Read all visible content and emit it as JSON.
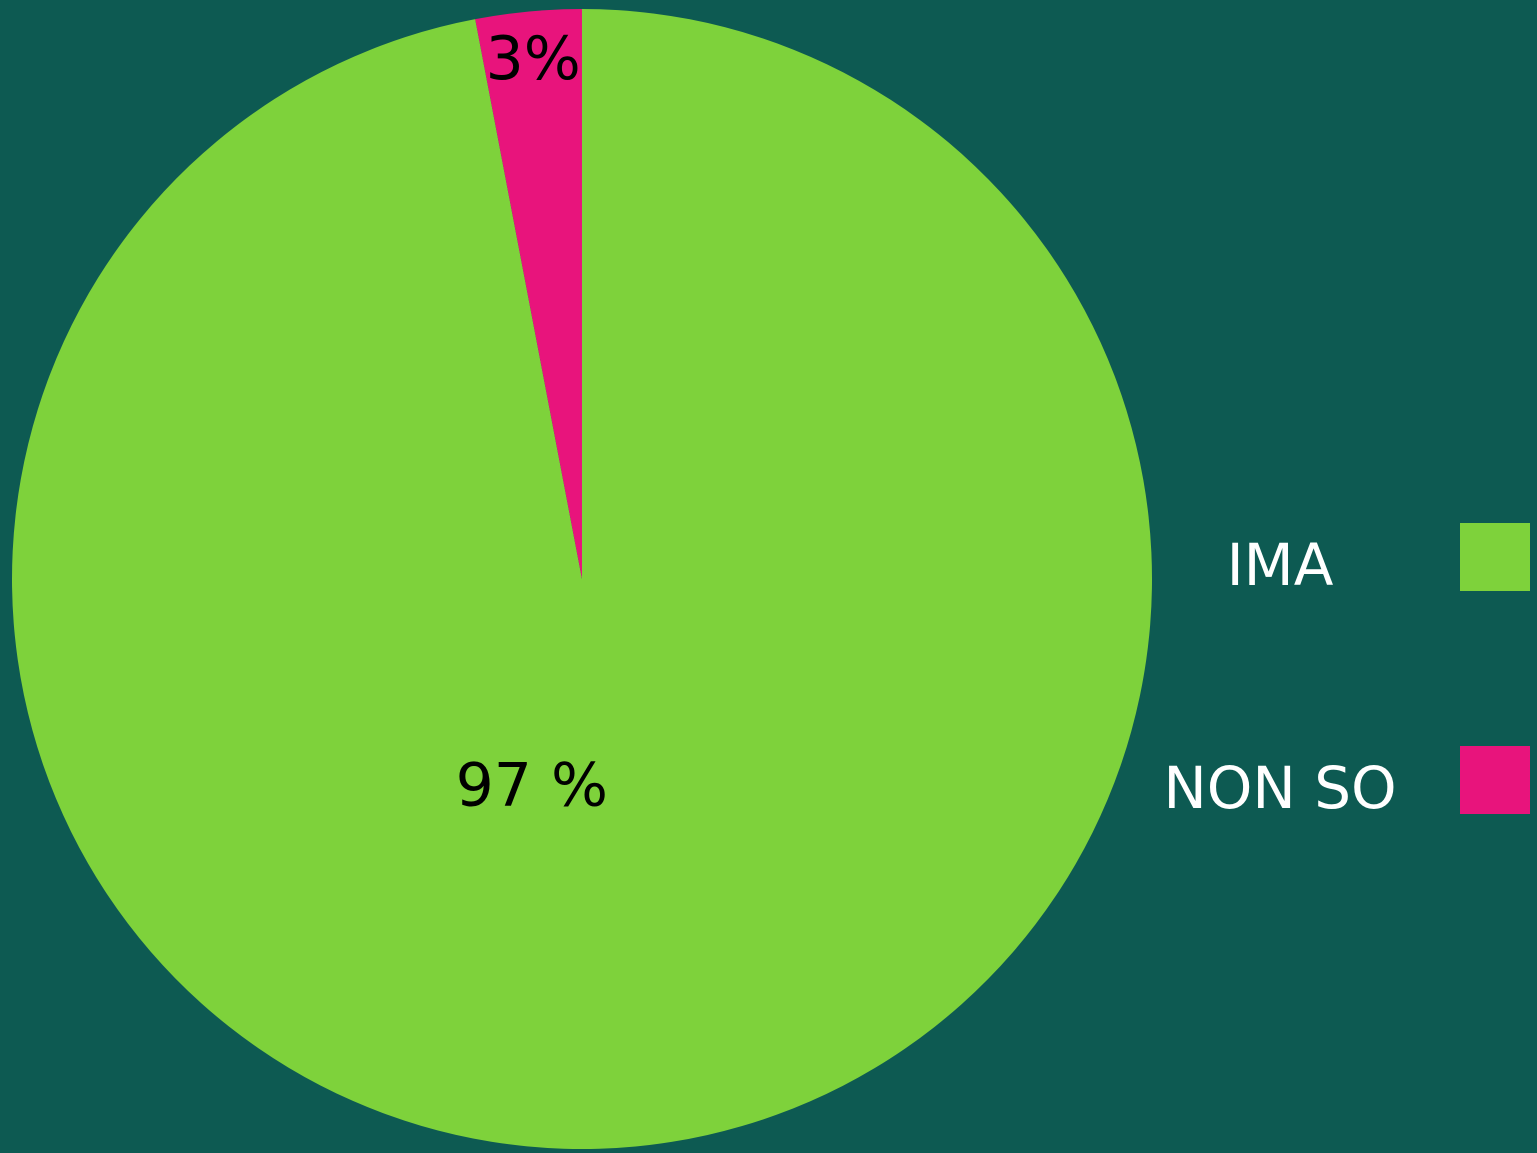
{
  "chart_data": {
    "type": "pie",
    "categories": [
      "IMA",
      "NON SO"
    ],
    "values": [
      97,
      3
    ],
    "value_labels": [
      "97 %",
      "3%"
    ],
    "colors": [
      "#7ed23b",
      "#e8147c"
    ]
  }
}
